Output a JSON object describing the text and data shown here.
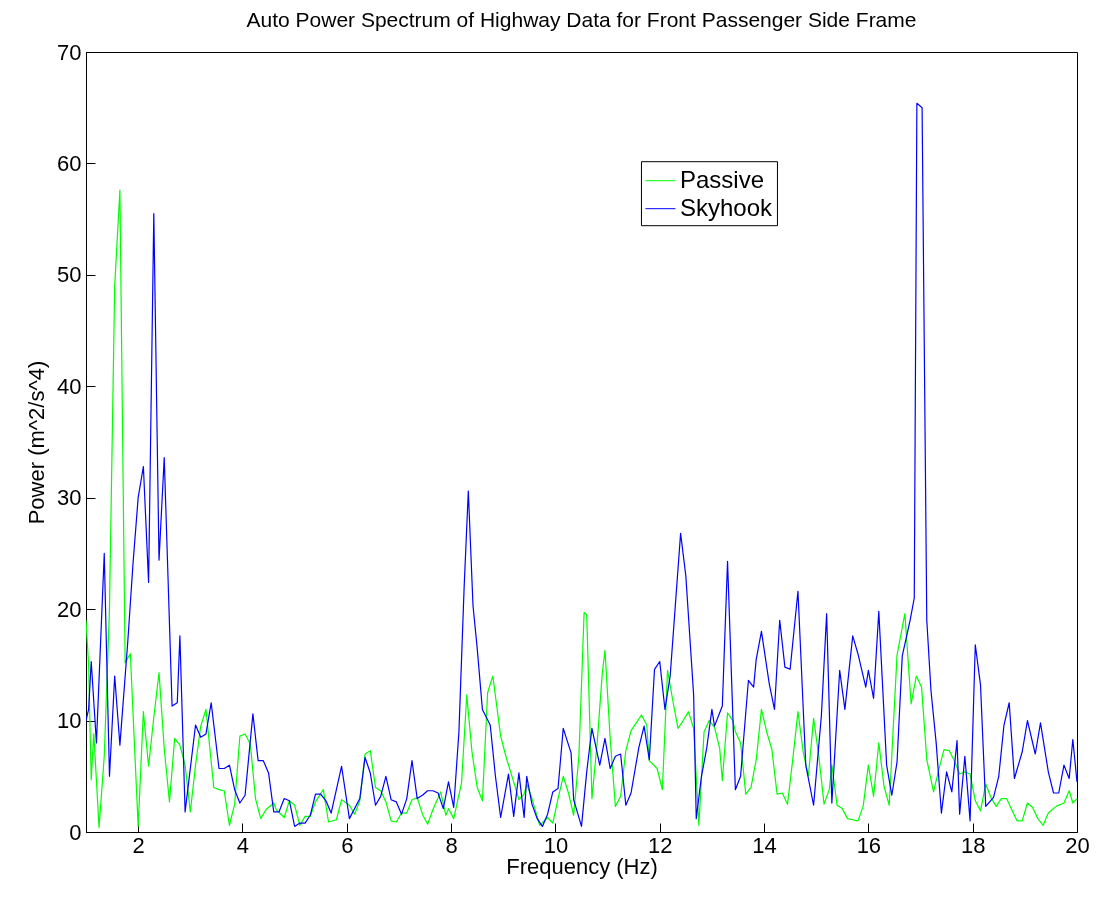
{
  "chart_data": {
    "type": "line",
    "title": "Auto Power Spectrum of Highway Data for Front Passenger Side Frame",
    "xlabel": "Frequency (Hz)",
    "ylabel": "Power (m^2/s^4)",
    "xlim": [
      1,
      20
    ],
    "xticks": [
      2,
      4,
      6,
      8,
      10,
      12,
      14,
      16,
      18,
      20
    ],
    "ylim": [
      0,
      70
    ],
    "yticks": [
      0,
      10,
      20,
      30,
      40,
      50,
      60,
      70
    ],
    "legend": "top right",
    "series": [
      {
        "name": "Passive",
        "color": "#00ff00",
        "x": [
          1.0,
          1.05,
          1.1,
          1.15,
          1.25,
          1.35,
          1.45,
          1.55,
          1.65,
          1.75,
          1.85,
          2.0,
          2.1,
          2.2,
          2.3,
          2.4,
          2.5,
          2.6,
          2.7,
          2.8,
          2.9,
          3.0,
          3.1,
          3.2,
          3.3,
          3.45,
          3.55,
          3.65,
          3.75,
          3.85,
          3.95,
          4.05,
          4.15,
          4.25,
          4.35,
          4.45,
          4.6,
          4.65,
          4.8,
          4.9,
          5.0,
          5.1,
          5.2,
          5.3,
          5.4,
          5.55,
          5.65,
          5.8,
          5.9,
          6.05,
          6.15,
          6.25,
          6.35,
          6.45,
          6.55,
          6.65,
          6.75,
          6.85,
          6.95,
          7.05,
          7.15,
          7.25,
          7.35,
          7.45,
          7.55,
          7.65,
          7.8,
          7.9,
          7.95,
          8.05,
          8.2,
          8.3,
          8.4,
          8.5,
          8.6,
          8.7,
          8.8,
          8.95,
          9.05,
          9.2,
          9.3,
          9.4,
          9.45,
          9.55,
          9.7,
          9.85,
          9.95,
          10.05,
          10.15,
          10.25,
          10.35,
          10.45,
          10.55,
          10.6,
          10.7,
          10.8,
          10.9,
          10.95,
          11.05,
          11.15,
          11.25,
          11.35,
          11.45,
          11.55,
          11.65,
          11.75,
          11.8,
          11.95,
          12.05,
          12.15,
          12.25,
          12.35,
          12.45,
          12.55,
          12.65,
          12.75,
          12.85,
          12.95,
          13.05,
          13.15,
          13.2,
          13.3,
          13.4,
          13.45,
          13.55,
          13.65,
          13.75,
          13.85,
          13.95,
          14.05,
          14.15,
          14.25,
          14.35,
          14.45,
          14.55,
          14.65,
          14.75,
          14.85,
          14.95,
          15.05,
          15.15,
          15.25,
          15.3,
          15.4,
          15.5,
          15.6,
          15.7,
          15.8,
          15.9,
          16.0,
          16.1,
          16.2,
          16.3,
          16.4,
          16.55,
          16.7,
          16.82,
          16.92,
          17.02,
          17.12,
          17.25,
          17.35,
          17.45,
          17.55,
          17.65,
          17.75,
          17.85,
          17.95,
          18.05,
          18.15,
          18.25,
          18.35,
          18.45,
          18.55,
          18.65,
          18.75,
          18.85,
          18.95,
          19.05,
          19.15,
          19.25,
          19.35,
          19.45,
          19.6,
          19.75,
          19.85,
          19.92,
          20.0
        ],
        "values": [
          19,
          15,
          4.7,
          8.8,
          0.4,
          6.8,
          20,
          49,
          57.6,
          15.2,
          16,
          0.5,
          10.8,
          5.9,
          10.3,
          14.3,
          7.5,
          2.7,
          8.4,
          7.8,
          6,
          1.8,
          6,
          9.5,
          11,
          4,
          3.8,
          3.7,
          0.6,
          2.5,
          8.6,
          8.8,
          7.9,
          3,
          1.2,
          2,
          2.6,
          2,
          1.3,
          2.8,
          2.4,
          0.6,
          1.4,
          1.4,
          2.7,
          3.8,
          0.9,
          1.1,
          2.9,
          2.4,
          1.6,
          2.8,
          7,
          7.3,
          4,
          3.7,
          2.7,
          1,
          0.9,
          1.7,
          1.7,
          2.9,
          3.1,
          1.6,
          0.7,
          2,
          3.6,
          1.5,
          2.1,
          1.2,
          4.4,
          12.3,
          7.2,
          4,
          2.8,
          12.5,
          14,
          8.6,
          6.8,
          4.5,
          2.9,
          3.4,
          4.3,
          3,
          0.6,
          1.3,
          0.8,
          3,
          5,
          3.5,
          1.5,
          6.8,
          19.7,
          19.5,
          3,
          8,
          14.3,
          16.3,
          8.4,
          2.3,
          3.2,
          7.3,
          9.1,
          9.8,
          10.5,
          9.6,
          6.4,
          5.7,
          3.8,
          14.5,
          11.8,
          9.3,
          10,
          10.8,
          9.3,
          0.6,
          9,
          10,
          9.4,
          7.5,
          4.6,
          10.7,
          10,
          9,
          8,
          3.4,
          4,
          6.5,
          11,
          9,
          7.4,
          3.4,
          3.5,
          2.5,
          6.5,
          10.8,
          7.2,
          5,
          10.2,
          6.8,
          2.5,
          3.8,
          6,
          2.4,
          2.1,
          1.2,
          1.1,
          1,
          2.3,
          6,
          3.2,
          8,
          4.1,
          2.4,
          15.9,
          19.6,
          11.5,
          14,
          13,
          6.5,
          3.6,
          5.6,
          7.4,
          7.3,
          6.4,
          5.2,
          5.4,
          5.2,
          2.8,
          1.9,
          4.3,
          3.1,
          2.3,
          3,
          3,
          2,
          1,
          1,
          2.6,
          2.2,
          1.2,
          0.6,
          1.7,
          2.3,
          2.6,
          3.7,
          2.6,
          3
        ]
      },
      {
        "name": "Skyhook",
        "color": "#0000ff",
        "x": [
          1.0,
          1.05,
          1.1,
          1.2,
          1.35,
          1.45,
          1.55,
          1.65,
          1.8,
          1.9,
          2.0,
          2.1,
          2.2,
          2.3,
          2.4,
          2.5,
          2.65,
          2.75,
          2.8,
          2.9,
          3.1,
          3.2,
          3.3,
          3.4,
          3.55,
          3.65,
          3.75,
          3.85,
          3.95,
          4.05,
          4.2,
          4.3,
          4.4,
          4.5,
          4.6,
          4.7,
          4.8,
          4.9,
          5.0,
          5.1,
          5.2,
          5.3,
          5.4,
          5.5,
          5.6,
          5.7,
          5.9,
          6.05,
          6.25,
          6.35,
          6.45,
          6.55,
          6.65,
          6.75,
          6.85,
          6.95,
          7.05,
          7.15,
          7.25,
          7.35,
          7.45,
          7.55,
          7.65,
          7.75,
          7.85,
          7.95,
          8.05,
          8.15,
          8.25,
          8.33,
          8.42,
          8.5,
          8.6,
          8.75,
          8.85,
          8.95,
          9.1,
          9.2,
          9.3,
          9.4,
          9.45,
          9.55,
          9.65,
          9.75,
          9.85,
          9.95,
          10.05,
          10.15,
          10.3,
          10.35,
          10.5,
          10.6,
          10.7,
          10.85,
          10.95,
          11.05,
          11.15,
          11.25,
          11.35,
          11.45,
          11.6,
          11.7,
          11.8,
          11.9,
          12.0,
          12.1,
          12.2,
          12.4,
          12.5,
          12.65,
          12.7,
          12.8,
          12.9,
          13.0,
          13.05,
          13.2,
          13.3,
          13.45,
          13.55,
          13.7,
          13.8,
          13.85,
          13.95,
          14.1,
          14.2,
          14.3,
          14.4,
          14.5,
          14.65,
          14.8,
          14.95,
          15.1,
          15.2,
          15.3,
          15.45,
          15.55,
          15.7,
          15.8,
          15.95,
          16.0,
          16.1,
          16.2,
          16.35,
          16.45,
          16.55,
          16.65,
          16.8,
          16.88,
          16.93,
          17.03,
          17.12,
          17.2,
          17.3,
          17.4,
          17.5,
          17.6,
          17.7,
          17.75,
          17.85,
          17.95,
          18.05,
          18.15,
          18.25,
          18.4,
          18.5,
          18.6,
          18.7,
          18.8,
          18.95,
          19.05,
          19.2,
          19.3,
          19.45,
          19.55,
          19.65,
          19.75,
          19.85,
          19.92,
          20.0
        ],
        "values": [
          10,
          11,
          15.3,
          8,
          25,
          5,
          14,
          7.8,
          17,
          24,
          30,
          32.8,
          22.4,
          55.5,
          24.4,
          33.6,
          11.3,
          11.6,
          17.6,
          1.8,
          9.6,
          8.5,
          8.8,
          11.6,
          5.7,
          5.7,
          6,
          3.8,
          2.6,
          3.3,
          10.6,
          6.4,
          6.4,
          5.3,
          1.8,
          1.8,
          3,
          2.8,
          0.5,
          0.8,
          0.8,
          1.5,
          3.4,
          3.4,
          2.8,
          1.7,
          5.9,
          1.2,
          3,
          6.7,
          5.3,
          2.4,
          3.2,
          5,
          2.9,
          2.7,
          1.6,
          3,
          6.4,
          3,
          3.3,
          3.7,
          3.7,
          3.5,
          2.1,
          4.5,
          2.2,
          9,
          22,
          30.6,
          20.3,
          16.5,
          11,
          9.6,
          5,
          1.3,
          5.2,
          1.4,
          5.3,
          1.3,
          5,
          2.5,
          1.2,
          0.5,
          1.6,
          3.6,
          3.9,
          9.3,
          7.1,
          2.9,
          0.5,
          5.4,
          9.3,
          6,
          8.4,
          5.7,
          6.8,
          7,
          2.4,
          3.5,
          7.6,
          9.5,
          6.5,
          14.6,
          15.3,
          11,
          14,
          26.8,
          23,
          12.3,
          1.2,
          5,
          7.5,
          11,
          9.5,
          11.3,
          24.3,
          3.8,
          5,
          13.6,
          13,
          15.5,
          18,
          13.3,
          11,
          19,
          14.8,
          14.6,
          21.6,
          6,
          2.4,
          10.5,
          19.6,
          2.6,
          14.5,
          11,
          17.6,
          16,
          13,
          14.5,
          12,
          19.8,
          6,
          3.3,
          6.3,
          15.8,
          19,
          21,
          65.4,
          65,
          19,
          12.7,
          8,
          1.7,
          5.4,
          3.6,
          8.2,
          1.6,
          6.8,
          1,
          16.8,
          13.2,
          2.3,
          3.1,
          5,
          9.6,
          11.6,
          4.8,
          7.2,
          10,
          7,
          9.8,
          5.4,
          3.5,
          3.5,
          6,
          4.8,
          8.3,
          4.5
        ]
      }
    ]
  }
}
